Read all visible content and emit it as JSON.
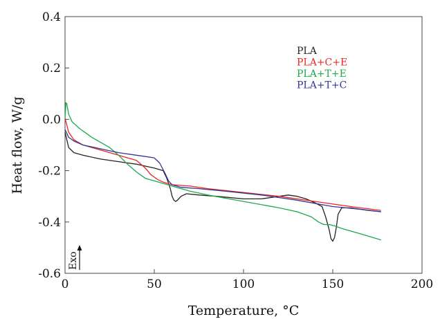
{
  "chart_data": {
    "type": "line",
    "xlabel": "Temperature, °C",
    "ylabel": "Heat flow, W/g",
    "xlim": [
      0,
      200
    ],
    "ylim": [
      -0.6,
      0.4
    ],
    "xticks": [
      "0",
      "50",
      "100",
      "150",
      "200"
    ],
    "yticks": [
      "0.4",
      "0.2",
      "0.0",
      "-0.2",
      "-0.4",
      "-0.6"
    ],
    "annotation": "Exo",
    "grid": false,
    "legend_position": "top-right",
    "series": [
      {
        "name": "PLA",
        "color": "#222222",
        "points": [
          [
            0,
            -0.05
          ],
          [
            2,
            -0.11
          ],
          [
            5,
            -0.13
          ],
          [
            10,
            -0.14
          ],
          [
            20,
            -0.155
          ],
          [
            30,
            -0.165
          ],
          [
            40,
            -0.175
          ],
          [
            50,
            -0.19
          ],
          [
            55,
            -0.2
          ],
          [
            57,
            -0.23
          ],
          [
            59,
            -0.27
          ],
          [
            60,
            -0.3
          ],
          [
            61,
            -0.315
          ],
          [
            62,
            -0.32
          ],
          [
            63,
            -0.315
          ],
          [
            65,
            -0.3
          ],
          [
            68,
            -0.29
          ],
          [
            75,
            -0.295
          ],
          [
            85,
            -0.3
          ],
          [
            100,
            -0.31
          ],
          [
            110,
            -0.31
          ],
          [
            120,
            -0.3
          ],
          [
            125,
            -0.295
          ],
          [
            130,
            -0.3
          ],
          [
            135,
            -0.31
          ],
          [
            140,
            -0.325
          ],
          [
            144,
            -0.34
          ],
          [
            146,
            -0.38
          ],
          [
            148,
            -0.43
          ],
          [
            149,
            -0.465
          ],
          [
            150,
            -0.475
          ],
          [
            151,
            -0.46
          ],
          [
            152,
            -0.42
          ],
          [
            153,
            -0.37
          ],
          [
            155,
            -0.345
          ],
          [
            160,
            -0.345
          ],
          [
            170,
            -0.355
          ],
          [
            177,
            -0.36
          ]
        ]
      },
      {
        "name": "PLA+C+E",
        "color": "#e8261f",
        "points": [
          [
            0,
            0.005
          ],
          [
            2,
            -0.05
          ],
          [
            5,
            -0.08
          ],
          [
            10,
            -0.1
          ],
          [
            20,
            -0.12
          ],
          [
            30,
            -0.14
          ],
          [
            35,
            -0.15
          ],
          [
            40,
            -0.16
          ],
          [
            45,
            -0.19
          ],
          [
            48,
            -0.215
          ],
          [
            52,
            -0.235
          ],
          [
            55,
            -0.245
          ],
          [
            60,
            -0.255
          ],
          [
            70,
            -0.26
          ],
          [
            80,
            -0.27
          ],
          [
            100,
            -0.285
          ],
          [
            120,
            -0.3
          ],
          [
            140,
            -0.32
          ],
          [
            160,
            -0.34
          ],
          [
            177,
            -0.355
          ]
        ]
      },
      {
        "name": "PLA+T+E",
        "color": "#1aa84a",
        "points": [
          [
            0,
            0.0
          ],
          [
            0.5,
            0.065
          ],
          [
            1,
            0.06
          ],
          [
            2,
            0.02
          ],
          [
            4,
            -0.01
          ],
          [
            8,
            -0.035
          ],
          [
            15,
            -0.07
          ],
          [
            25,
            -0.11
          ],
          [
            30,
            -0.14
          ],
          [
            35,
            -0.175
          ],
          [
            40,
            -0.205
          ],
          [
            45,
            -0.23
          ],
          [
            50,
            -0.24
          ],
          [
            55,
            -0.25
          ],
          [
            60,
            -0.26
          ],
          [
            70,
            -0.28
          ],
          [
            80,
            -0.295
          ],
          [
            100,
            -0.32
          ],
          [
            120,
            -0.345
          ],
          [
            130,
            -0.36
          ],
          [
            138,
            -0.38
          ],
          [
            142,
            -0.4
          ],
          [
            145,
            -0.41
          ],
          [
            148,
            -0.41
          ],
          [
            151,
            -0.415
          ],
          [
            155,
            -0.425
          ],
          [
            165,
            -0.445
          ],
          [
            177,
            -0.47
          ]
        ]
      },
      {
        "name": "PLA+T+C",
        "color": "#333399",
        "points": [
          [
            0,
            -0.04
          ],
          [
            2,
            -0.07
          ],
          [
            5,
            -0.085
          ],
          [
            10,
            -0.1
          ],
          [
            20,
            -0.115
          ],
          [
            30,
            -0.13
          ],
          [
            40,
            -0.14
          ],
          [
            45,
            -0.145
          ],
          [
            50,
            -0.15
          ],
          [
            53,
            -0.17
          ],
          [
            56,
            -0.21
          ],
          [
            58,
            -0.24
          ],
          [
            60,
            -0.255
          ],
          [
            65,
            -0.265
          ],
          [
            75,
            -0.27
          ],
          [
            90,
            -0.28
          ],
          [
            110,
            -0.295
          ],
          [
            130,
            -0.315
          ],
          [
            150,
            -0.34
          ],
          [
            165,
            -0.35
          ],
          [
            177,
            -0.36
          ]
        ]
      }
    ]
  }
}
